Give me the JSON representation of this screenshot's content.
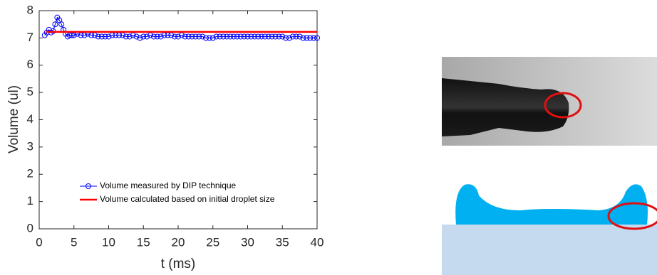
{
  "chart_data": {
    "type": "line",
    "xlabel": "t (ms)",
    "ylabel": "Volume (ul)",
    "xlim": [
      0,
      40
    ],
    "ylim": [
      0,
      8
    ],
    "xticks": [
      0,
      5,
      10,
      15,
      20,
      25,
      30,
      35,
      40
    ],
    "yticks": [
      0,
      1,
      2,
      3,
      4,
      5,
      6,
      7,
      8
    ],
    "legend": "lower left",
    "series": [
      {
        "name": "Volume measured by DIP technique",
        "color": "#0000ff",
        "marker": "circle",
        "x": [
          0.8,
          1.1,
          1.4,
          1.7,
          2.0,
          2.3,
          2.6,
          2.9,
          3.2,
          3.5,
          3.8,
          4.1,
          4.4,
          4.7,
          5.0,
          5.5,
          6,
          6.5,
          7,
          7.5,
          8,
          8.5,
          9,
          9.5,
          10,
          10.5,
          11,
          11.5,
          12,
          12.5,
          13,
          13.5,
          14,
          14.5,
          15,
          15.5,
          16,
          16.5,
          17,
          17.5,
          18,
          18.5,
          19,
          19.5,
          20,
          20.5,
          21,
          21.5,
          22,
          22.5,
          23,
          23.5,
          24,
          24.5,
          25,
          25.5,
          26,
          26.5,
          27,
          27.5,
          28,
          28.5,
          29,
          29.5,
          30,
          30.5,
          31,
          31.5,
          32,
          32.5,
          33,
          33.5,
          34,
          34.5,
          35,
          35.5,
          36,
          36.5,
          37,
          37.5,
          38,
          38.5,
          39,
          39.5,
          40
        ],
        "values": [
          7.1,
          7.2,
          7.3,
          7.2,
          7.25,
          7.5,
          7.75,
          7.65,
          7.5,
          7.3,
          7.15,
          7.05,
          7.1,
          7.1,
          7.1,
          7.15,
          7.1,
          7.1,
          7.15,
          7.1,
          7.1,
          7.05,
          7.05,
          7.05,
          7.05,
          7.1,
          7.1,
          7.1,
          7.1,
          7.05,
          7.05,
          7.1,
          7.05,
          7.0,
          7.05,
          7.05,
          7.1,
          7.05,
          7.05,
          7.05,
          7.1,
          7.1,
          7.1,
          7.05,
          7.05,
          7.1,
          7.05,
          7.05,
          7.05,
          7.05,
          7.05,
          7.05,
          7.0,
          7.0,
          7.0,
          7.05,
          7.05,
          7.05,
          7.05,
          7.05,
          7.05,
          7.05,
          7.05,
          7.05,
          7.05,
          7.05,
          7.05,
          7.05,
          7.05,
          7.05,
          7.05,
          7.05,
          7.05,
          7.05,
          7.05,
          7.0,
          7.0,
          7.05,
          7.05,
          7.05,
          7.0,
          7.0,
          7.0,
          7.0,
          7.0
        ]
      },
      {
        "name": "Volume calculated based on initial droplet size",
        "color": "#ff0000",
        "marker": "none",
        "x": [
          1,
          40
        ],
        "values": [
          7.22,
          7.22
        ]
      }
    ]
  }
}
